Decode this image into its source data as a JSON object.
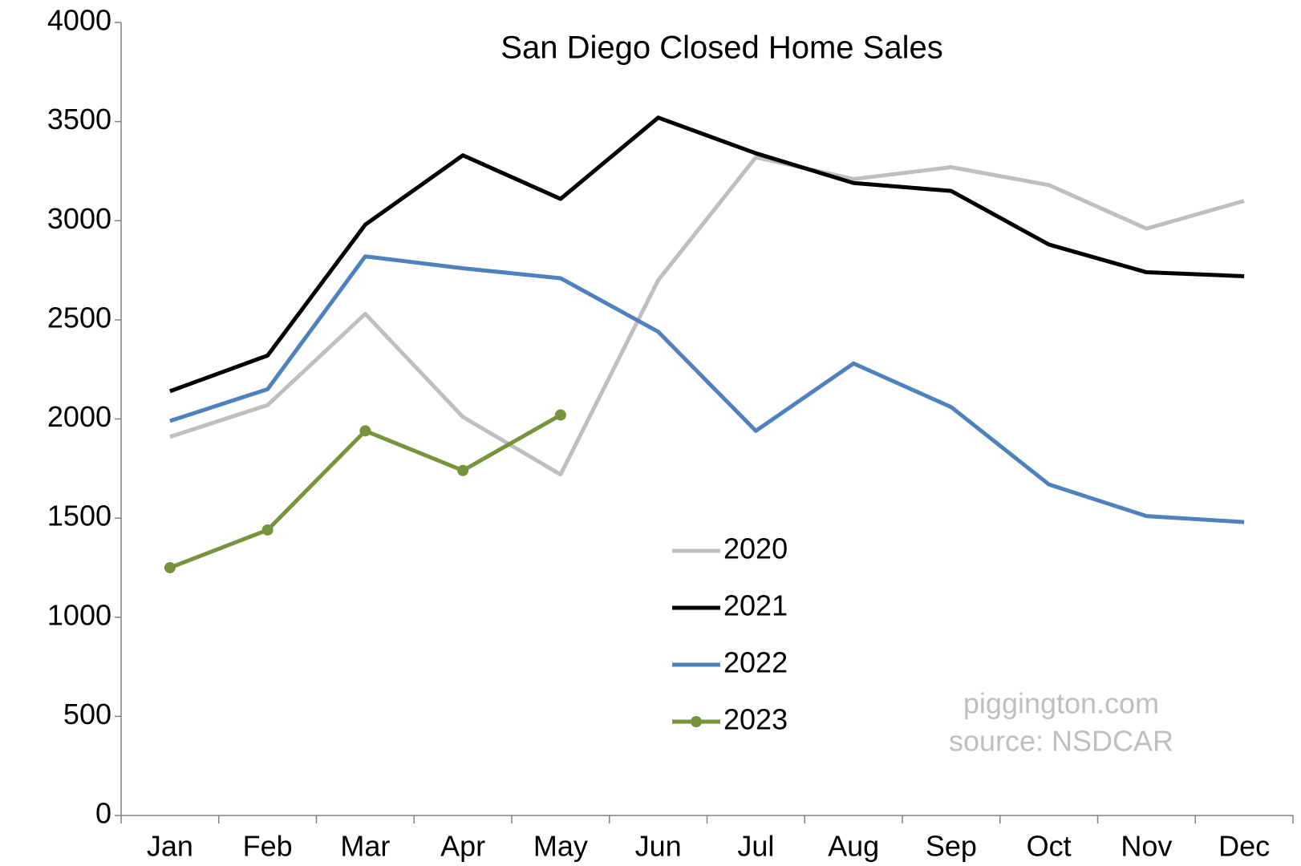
{
  "chart_data": {
    "type": "line",
    "title": "San Diego Closed Home Sales",
    "categories": [
      "Jan",
      "Feb",
      "Mar",
      "Apr",
      "May",
      "Jun",
      "Jul",
      "Aug",
      "Sep",
      "Oct",
      "Nov",
      "Dec"
    ],
    "series": [
      {
        "name": "2020",
        "color": "#bfbfbf",
        "values": [
          1910,
          2070,
          2530,
          2010,
          1720,
          2700,
          3320,
          3210,
          3270,
          3180,
          2960,
          3100
        ]
      },
      {
        "name": "2021",
        "color": "#000000",
        "values": [
          2140,
          2320,
          2980,
          3330,
          3110,
          3520,
          3340,
          3190,
          3150,
          2880,
          2740,
          2720
        ]
      },
      {
        "name": "2022",
        "color": "#4f81bd",
        "values": [
          1990,
          2150,
          2820,
          2760,
          2710,
          2440,
          1940,
          2280,
          2060,
          1670,
          1510,
          1480
        ]
      },
      {
        "name": "2023",
        "color": "#77933c",
        "markers": true,
        "values": [
          1250,
          1440,
          1940,
          1740,
          2020,
          null,
          null,
          null,
          null,
          null,
          null,
          null
        ]
      }
    ],
    "ylim": [
      0,
      4000
    ],
    "yticks": [
      0,
      500,
      1000,
      1500,
      2000,
      2500,
      3000,
      3500,
      4000
    ],
    "grid": false,
    "annotations": [
      "piggington.com",
      "source: NSDCAR"
    ]
  }
}
